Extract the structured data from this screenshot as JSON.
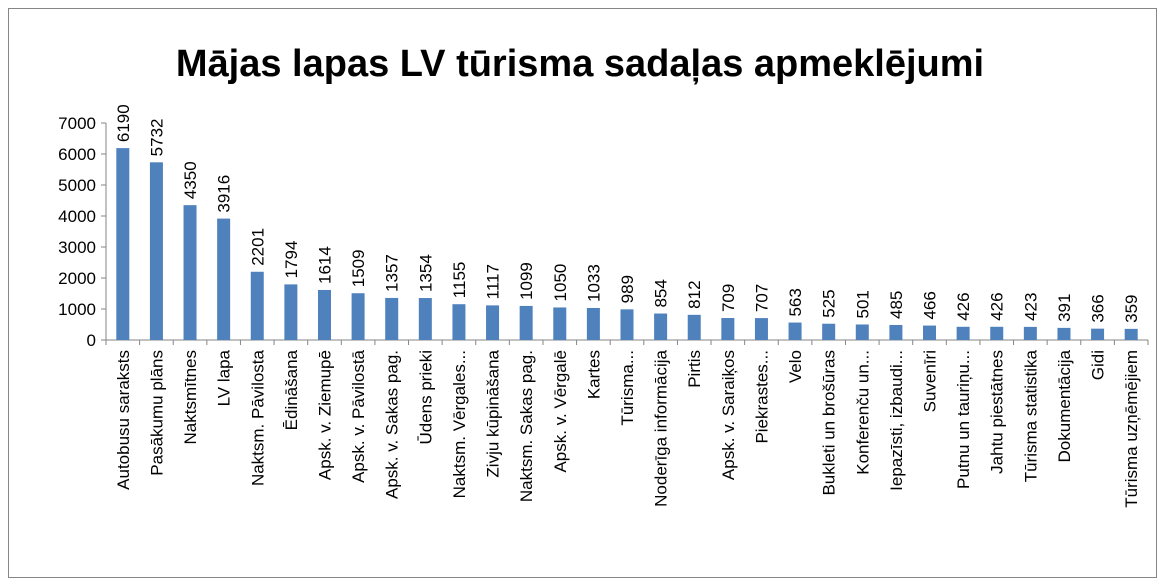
{
  "chart_data": {
    "type": "bar",
    "title": "Mājas lapas LV tūrisma sadaļas apmeklējumi",
    "categories": [
      "Autobusu saraksts",
      "Pasākumu plāns",
      "Naktsmītnes",
      "LV lapa",
      "Naktsm. Pāvilosta",
      "Ēdināšana",
      "Apsk. v. Ziemupē",
      "Apsk. v. Pāvilostā",
      "Apsk. v. Sakas pag.",
      "Ūdens prieki",
      "Naktsm. Vērgales...",
      "Zivju kūpināšana",
      "Naktsm. Sakas pag.",
      "Apsk. v. Vērgalē",
      "Kartes",
      "Tūrisma...",
      "Noderīga informācija",
      "Pirtis",
      "Apsk. v. Saraiķos",
      "Piekrastes...",
      "Velo",
      "Bukleti un brošūras",
      "Konferenču un...",
      "Iepazīsti, izbaudi...",
      "Suvenīri",
      "Putnu un tauriņu...",
      "Jahtu piestātnes",
      "Tūrisma statistika",
      "Dokumentācija",
      "Gidi",
      "Tūrisma uzņēmējiem"
    ],
    "values": [
      6190,
      5732,
      4350,
      3916,
      2201,
      1794,
      1614,
      1509,
      1357,
      1354,
      1155,
      1117,
      1099,
      1050,
      1033,
      989,
      854,
      812,
      709,
      707,
      563,
      525,
      501,
      485,
      466,
      426,
      426,
      423,
      391,
      366,
      359
    ],
    "color": "#4f81bd",
    "ylim": [
      0,
      7000
    ],
    "yticks": [
      0,
      1000,
      2000,
      3000,
      4000,
      5000,
      6000,
      7000
    ],
    "grid": false
  }
}
